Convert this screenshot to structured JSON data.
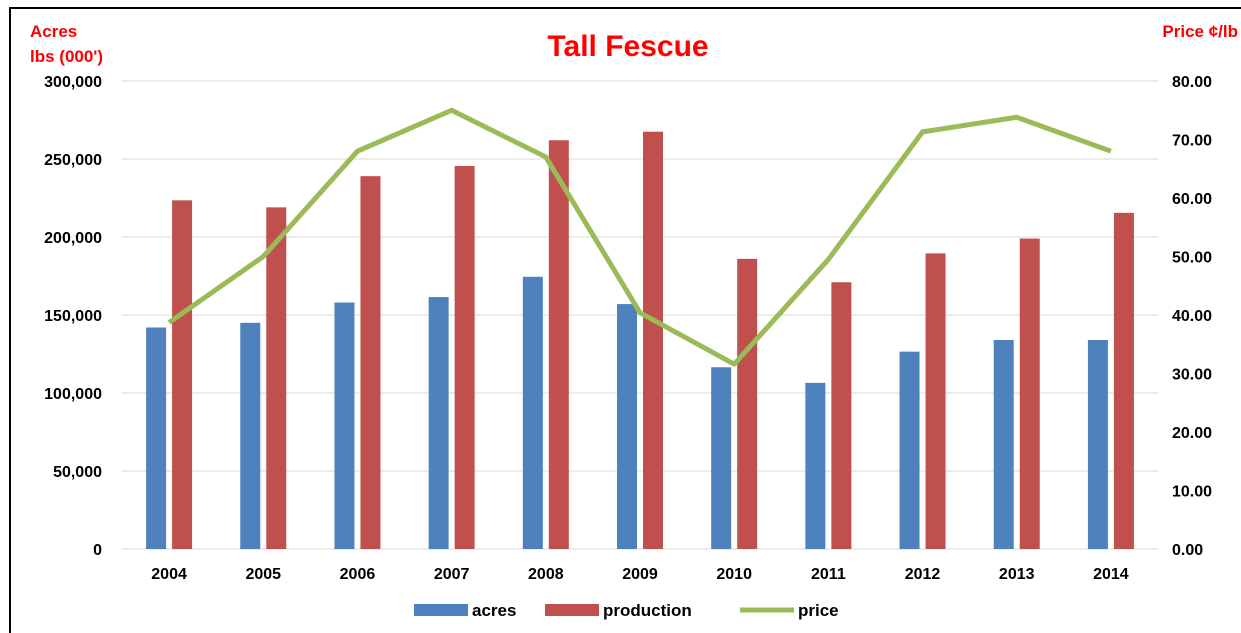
{
  "chart_data": {
    "type": "bar",
    "title": "Tall Fescue",
    "ylabel_left": [
      "Acres",
      "lbs (000')"
    ],
    "ylabel_right": "Price ¢/lb",
    "categories": [
      "2004",
      "2005",
      "2006",
      "2007",
      "2008",
      "2009",
      "2010",
      "2011",
      "2012",
      "2013",
      "2014"
    ],
    "series": [
      {
        "name": "acres",
        "type": "bar",
        "axis": "left",
        "color": "#4f81bd",
        "values": [
          142000,
          145000,
          158000,
          161500,
          174500,
          157000,
          116500,
          106500,
          126500,
          134000,
          134000
        ]
      },
      {
        "name": "production",
        "type": "bar",
        "axis": "left",
        "color": "#c0504d",
        "values": [
          223500,
          219000,
          239000,
          245500,
          262000,
          267500,
          186000,
          171000,
          189500,
          199000,
          215500
        ]
      },
      {
        "name": "price",
        "type": "line",
        "axis": "right",
        "color": "#9bbb59",
        "values": [
          38.7,
          50.0,
          68.0,
          75.0,
          67.0,
          40.4,
          31.6,
          49.5,
          71.3,
          73.8,
          68.0
        ]
      }
    ],
    "ylim_left": [
      0,
      300000
    ],
    "yticks_left": [
      "0",
      "50,000",
      "100,000",
      "150,000",
      "200,000",
      "250,000",
      "300,000"
    ],
    "ylim_right": [
      0,
      80
    ],
    "yticks_right": [
      "0.00",
      "10.00",
      "20.00",
      "30.00",
      "40.00",
      "50.00",
      "60.00",
      "70.00",
      "80.00"
    ],
    "grid": true,
    "legend_position": "bottom"
  }
}
